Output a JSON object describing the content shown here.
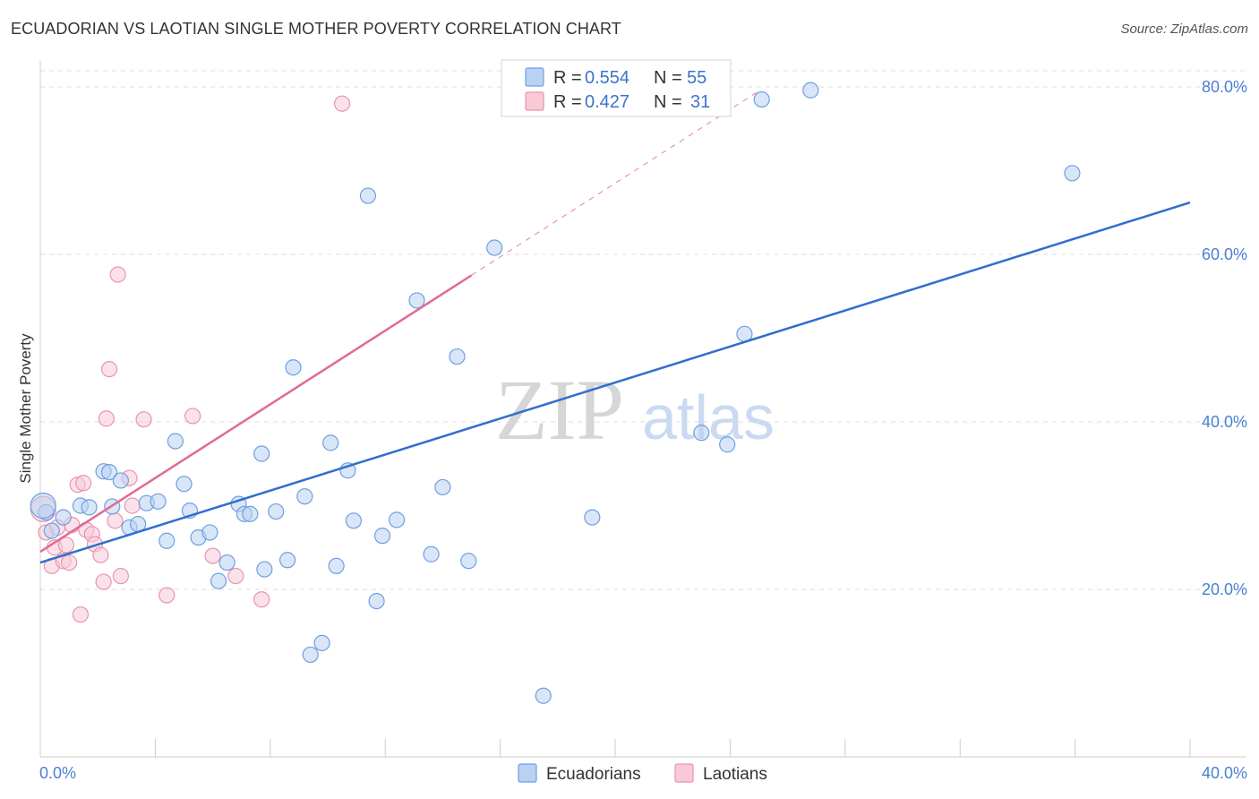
{
  "title": "ECUADORIAN VS LAOTIAN SINGLE MOTHER POVERTY CORRELATION CHART",
  "source": "Source: ZipAtlas.com",
  "watermark": {
    "zip": "ZIP",
    "atlas": "atlas"
  },
  "colors": {
    "ecuadorian_fill": "#b9d1f2",
    "ecuadorian_stroke": "#6f9fe0",
    "ecuadorian_line": "#2f6fcd",
    "laotian_fill": "#f8cad8",
    "laotian_stroke": "#e993ae",
    "laotian_line": "#e06b95",
    "grid": "#dddddd",
    "tick_label": "#4a7fd4"
  },
  "legend": {
    "rows": [
      {
        "r_label": "R =",
        "r_value": "0.554",
        "n_label": "N =",
        "n_value": "55"
      },
      {
        "r_label": "R =",
        "r_value": "0.427",
        "n_label": "N =",
        "n_value": "31"
      }
    ]
  },
  "chart_data": {
    "type": "scatter",
    "title": "ECUADORIAN VS LAOTIAN SINGLE MOTHER POVERTY CORRELATION CHART",
    "xlabel": "",
    "ylabel": "Single Mother Poverty",
    "xlim": [
      0,
      40
    ],
    "ylim": [
      0,
      83
    ],
    "x_tick_labels": [
      "0.0%",
      "40.0%"
    ],
    "y_ticks": [
      20,
      40,
      60,
      80
    ],
    "y_tick_labels": [
      "20.0%",
      "40.0%",
      "60.0%",
      "80.0%"
    ],
    "grid": true,
    "series": [
      {
        "name": "Ecuadorians",
        "trend": {
          "x0": 0,
          "y0": 23.2,
          "x1": 40,
          "y1": 66.2
        },
        "points": [
          [
            0.2,
            29.2
          ],
          [
            0.4,
            27.0
          ],
          [
            0.8,
            28.6
          ],
          [
            1.4,
            30.0
          ],
          [
            1.7,
            29.8
          ],
          [
            2.2,
            34.1
          ],
          [
            2.4,
            34.0
          ],
          [
            2.5,
            29.9
          ],
          [
            2.8,
            33.0
          ],
          [
            3.1,
            27.4
          ],
          [
            3.4,
            27.8
          ],
          [
            3.7,
            30.3
          ],
          [
            4.1,
            30.5
          ],
          [
            4.4,
            25.8
          ],
          [
            4.7,
            37.7
          ],
          [
            5.0,
            32.6
          ],
          [
            5.2,
            29.4
          ],
          [
            5.5,
            26.2
          ],
          [
            5.9,
            26.8
          ],
          [
            6.2,
            21.0
          ],
          [
            6.5,
            23.2
          ],
          [
            6.9,
            30.2
          ],
          [
            7.1,
            29.0
          ],
          [
            7.3,
            29.0
          ],
          [
            7.7,
            36.2
          ],
          [
            7.8,
            22.4
          ],
          [
            8.2,
            29.3
          ],
          [
            8.6,
            23.5
          ],
          [
            8.8,
            46.5
          ],
          [
            9.2,
            31.1
          ],
          [
            9.4,
            12.2
          ],
          [
            9.8,
            13.6
          ],
          [
            10.1,
            37.5
          ],
          [
            10.3,
            22.8
          ],
          [
            10.7,
            34.2
          ],
          [
            10.9,
            28.2
          ],
          [
            11.4,
            67.0
          ],
          [
            11.7,
            18.6
          ],
          [
            11.9,
            26.4
          ],
          [
            12.4,
            28.3
          ],
          [
            13.1,
            54.5
          ],
          [
            13.6,
            24.2
          ],
          [
            14.0,
            32.2
          ],
          [
            14.5,
            47.8
          ],
          [
            14.9,
            23.4
          ],
          [
            15.8,
            60.8
          ],
          [
            17.5,
            7.3
          ],
          [
            19.2,
            28.6
          ],
          [
            23.0,
            38.7
          ],
          [
            23.9,
            37.3
          ],
          [
            24.5,
            50.5
          ],
          [
            25.1,
            78.5
          ],
          [
            26.8,
            79.6
          ],
          [
            35.9,
            69.7
          ],
          [
            0.1,
            30.0
          ]
        ]
      },
      {
        "name": "Laotians",
        "trend": {
          "x0": 0,
          "y0": 24.5,
          "x1": 15,
          "y1": 57.5
        },
        "trend_extension": {
          "x0": 15,
          "y0": 57.5,
          "x1": 25,
          "y1": 79.5
        },
        "points": [
          [
            0.1,
            29.6
          ],
          [
            0.2,
            26.8
          ],
          [
            0.4,
            22.8
          ],
          [
            0.5,
            25.0
          ],
          [
            0.6,
            27.4
          ],
          [
            0.8,
            23.4
          ],
          [
            0.9,
            25.3
          ],
          [
            1.0,
            23.2
          ],
          [
            1.1,
            27.7
          ],
          [
            1.3,
            32.5
          ],
          [
            1.4,
            17.0
          ],
          [
            1.5,
            32.7
          ],
          [
            1.6,
            27.1
          ],
          [
            1.8,
            26.6
          ],
          [
            1.9,
            25.4
          ],
          [
            2.1,
            24.1
          ],
          [
            2.2,
            20.9
          ],
          [
            2.3,
            40.4
          ],
          [
            2.4,
            46.3
          ],
          [
            2.6,
            28.2
          ],
          [
            2.7,
            57.6
          ],
          [
            2.8,
            21.6
          ],
          [
            3.1,
            33.3
          ],
          [
            3.2,
            30.0
          ],
          [
            3.6,
            40.3
          ],
          [
            4.4,
            19.3
          ],
          [
            5.3,
            40.7
          ],
          [
            6.0,
            24.0
          ],
          [
            6.8,
            21.6
          ],
          [
            7.7,
            18.8
          ],
          [
            10.5,
            78.0
          ]
        ]
      }
    ]
  },
  "bottom_legend": [
    {
      "label": "Ecuadorians"
    },
    {
      "label": "Laotians"
    }
  ]
}
